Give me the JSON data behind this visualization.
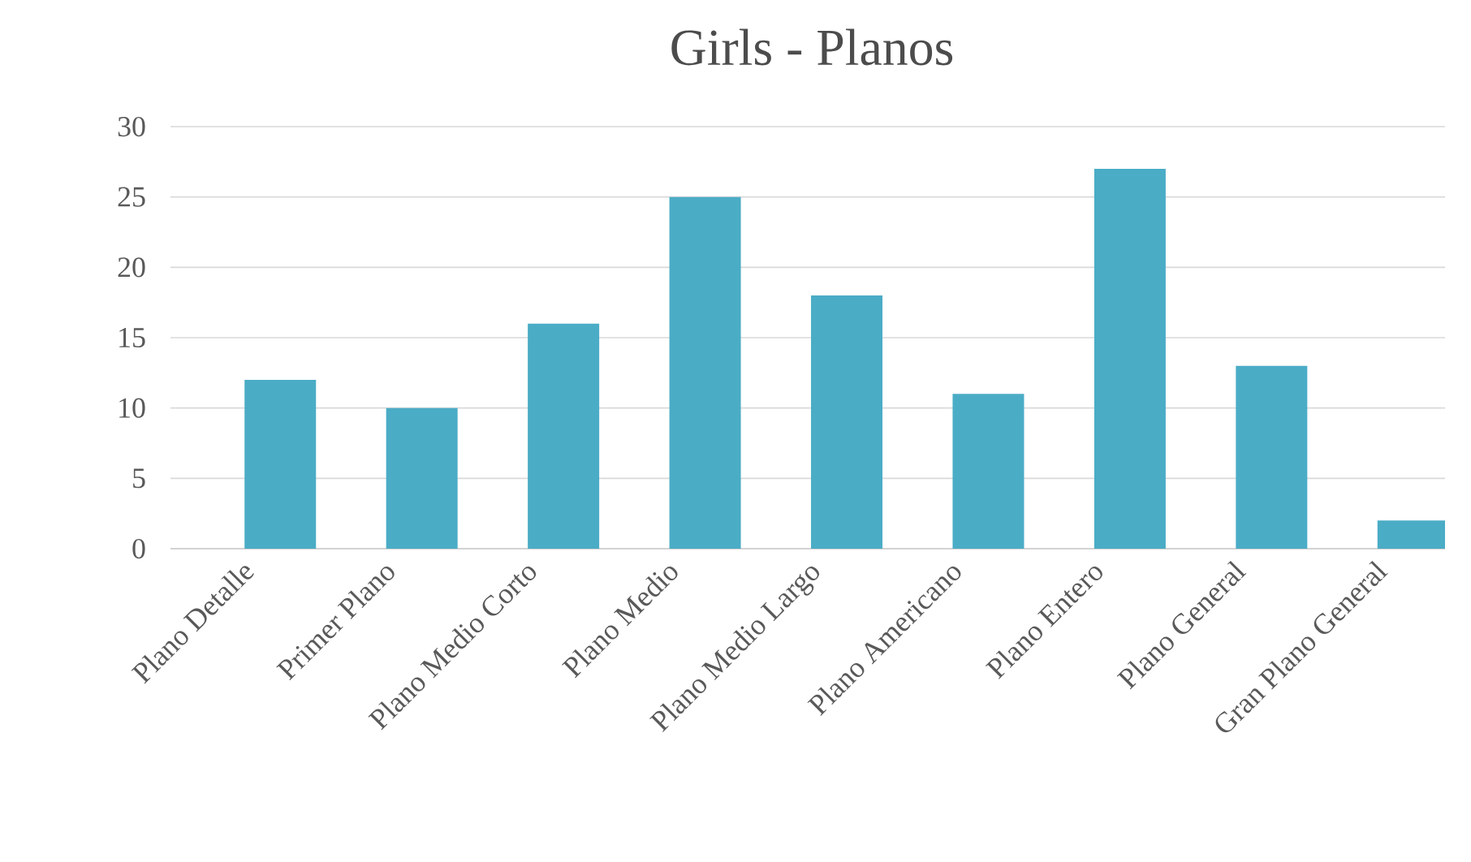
{
  "chart_data": {
    "type": "bar",
    "title": "Girls - Planos",
    "categories": [
      "Plano Detalle",
      "Primer Plano",
      "Plano Medio Corto",
      "Plano Medio",
      "Plano Medio Largo",
      "Plano Americano",
      "Plano Entero",
      "Plano General",
      "Gran Plano General"
    ],
    "values": [
      12,
      10,
      16,
      25,
      18,
      11,
      27,
      13,
      2
    ],
    "color": "#4bacc6",
    "ylim": [
      0,
      30
    ],
    "yticks": [
      0,
      5,
      10,
      15,
      20,
      25,
      30
    ],
    "grid": "y",
    "legend": false
  }
}
